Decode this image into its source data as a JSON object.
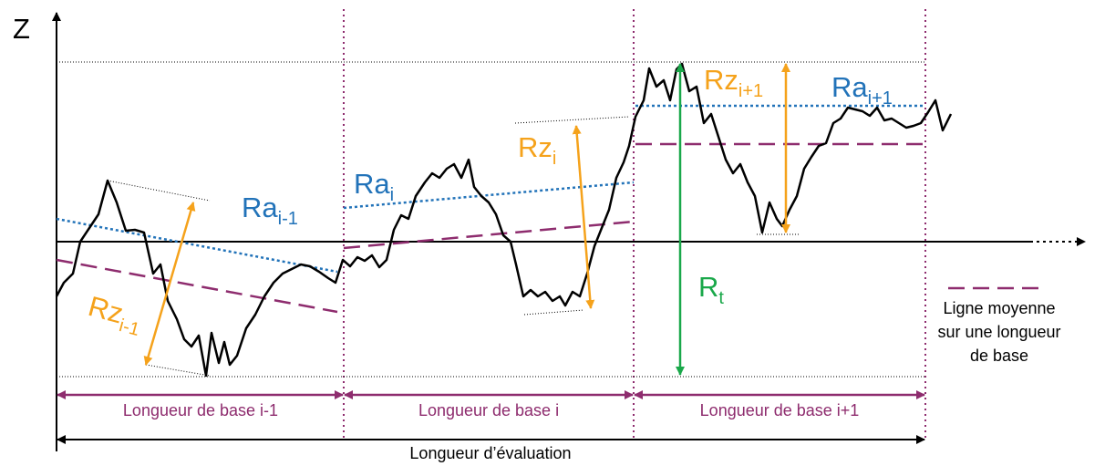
{
  "axis_label": "Z",
  "labels": {
    "ra_prev": {
      "main": "Ra",
      "sub": "i-1"
    },
    "ra_cur": {
      "main": "Ra",
      "sub": "i"
    },
    "ra_next": {
      "main": "Ra",
      "sub": "i+1"
    },
    "rz_prev": {
      "main": "Rz",
      "sub": "i-1"
    },
    "rz_cur": {
      "main": "Rz",
      "sub": "i"
    },
    "rz_next": {
      "main": "Rz",
      "sub": "i+1"
    },
    "rt": {
      "main": "R",
      "sub": "t"
    }
  },
  "base_lengths": [
    "Longueur de base i-1",
    "Longueur de base i",
    "Longueur de base i+1"
  ],
  "evaluation_length": "Longueur d’évaluation",
  "legend": {
    "lines": [
      "Ligne moyenne",
      "sur une longueur",
      "de base"
    ]
  }
}
